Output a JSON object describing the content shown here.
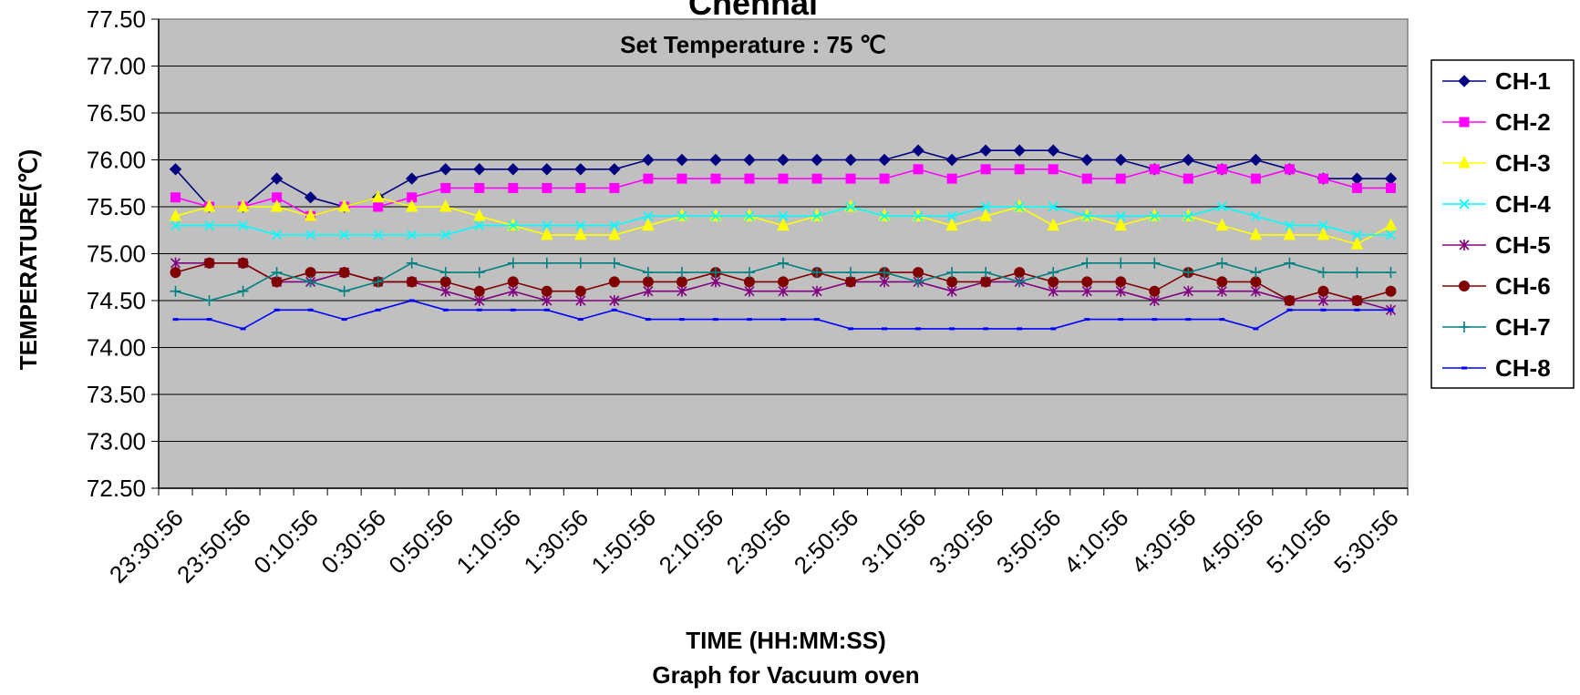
{
  "chart_data": {
    "type": "line",
    "title": "Chennai",
    "annotation": "Set Temperature : 75 ℃",
    "xlabel": "TIME (HH:MM:SS)",
    "caption": "Graph for Vacuum oven",
    "ylabel": "TEMPERATURE(℃)",
    "ylim": [
      72.5,
      77.5
    ],
    "y_ticks": [
      "72.50",
      "73.00",
      "73.50",
      "74.00",
      "74.50",
      "75.00",
      "75.50",
      "76.00",
      "76.50",
      "77.00",
      "77.50"
    ],
    "x_tick_labels": [
      "23:30:56",
      "23:50:56",
      "0:10:56",
      "0:30:56",
      "0:50:56",
      "1:10:56",
      "1:30:56",
      "1:50:56",
      "2:10:56",
      "2:30:56",
      "2:50:56",
      "3:10:56",
      "3:30:56",
      "3:50:56",
      "4:10:56",
      "4:30:56",
      "4:50:56",
      "5:10:56",
      "5:30:56"
    ],
    "grid": true,
    "plot_background": "#c0c0c0",
    "legend_position": "right",
    "series": [
      {
        "name": "CH-1",
        "color": "#000080",
        "marker": "diamond",
        "values": [
          75.9,
          75.5,
          75.5,
          75.8,
          75.6,
          75.5,
          75.6,
          75.8,
          75.9,
          75.9,
          75.9,
          75.9,
          75.9,
          75.9,
          76.0,
          76.0,
          76.0,
          76.0,
          76.0,
          76.0,
          76.0,
          76.0,
          76.1,
          76.0,
          76.1,
          76.1,
          76.1,
          76.0,
          76.0,
          75.9,
          76.0,
          75.9,
          76.0,
          75.9,
          75.8,
          75.8,
          75.8
        ]
      },
      {
        "name": "CH-2",
        "color": "#ff00ff",
        "marker": "square",
        "values": [
          75.6,
          75.5,
          75.5,
          75.6,
          75.4,
          75.5,
          75.5,
          75.6,
          75.7,
          75.7,
          75.7,
          75.7,
          75.7,
          75.7,
          75.8,
          75.8,
          75.8,
          75.8,
          75.8,
          75.8,
          75.8,
          75.8,
          75.9,
          75.8,
          75.9,
          75.9,
          75.9,
          75.8,
          75.8,
          75.9,
          75.8,
          75.9,
          75.8,
          75.9,
          75.8,
          75.7,
          75.7
        ]
      },
      {
        "name": "CH-3",
        "color": "#ffff00",
        "marker": "triangle",
        "values": [
          75.4,
          75.5,
          75.5,
          75.5,
          75.4,
          75.5,
          75.6,
          75.5,
          75.5,
          75.4,
          75.3,
          75.2,
          75.2,
          75.2,
          75.3,
          75.4,
          75.4,
          75.4,
          75.3,
          75.4,
          75.5,
          75.4,
          75.4,
          75.3,
          75.4,
          75.5,
          75.3,
          75.4,
          75.3,
          75.4,
          75.4,
          75.3,
          75.2,
          75.2,
          75.2,
          75.1,
          75.3
        ]
      },
      {
        "name": "CH-4",
        "color": "#00ffff",
        "marker": "x",
        "values": [
          75.3,
          75.3,
          75.3,
          75.2,
          75.2,
          75.2,
          75.2,
          75.2,
          75.2,
          75.3,
          75.3,
          75.3,
          75.3,
          75.3,
          75.4,
          75.4,
          75.4,
          75.4,
          75.4,
          75.4,
          75.5,
          75.4,
          75.4,
          75.4,
          75.5,
          75.5,
          75.5,
          75.4,
          75.4,
          75.4,
          75.4,
          75.5,
          75.4,
          75.3,
          75.3,
          75.2,
          75.2
        ]
      },
      {
        "name": "CH-5",
        "color": "#800080",
        "marker": "star",
        "values": [
          74.9,
          74.9,
          74.9,
          74.7,
          74.7,
          74.8,
          74.7,
          74.7,
          74.6,
          74.5,
          74.6,
          74.5,
          74.5,
          74.5,
          74.6,
          74.6,
          74.7,
          74.6,
          74.6,
          74.6,
          74.7,
          74.7,
          74.7,
          74.6,
          74.7,
          74.7,
          74.6,
          74.6,
          74.6,
          74.5,
          74.6,
          74.6,
          74.6,
          74.5,
          74.5,
          74.5,
          74.4
        ]
      },
      {
        "name": "CH-6",
        "color": "#800000",
        "marker": "circle",
        "values": [
          74.8,
          74.9,
          74.9,
          74.7,
          74.8,
          74.8,
          74.7,
          74.7,
          74.7,
          74.6,
          74.7,
          74.6,
          74.6,
          74.7,
          74.7,
          74.7,
          74.8,
          74.7,
          74.7,
          74.8,
          74.7,
          74.8,
          74.8,
          74.7,
          74.7,
          74.8,
          74.7,
          74.7,
          74.7,
          74.6,
          74.8,
          74.7,
          74.7,
          74.5,
          74.6,
          74.5,
          74.6
        ]
      },
      {
        "name": "CH-7",
        "color": "#008080",
        "marker": "plus",
        "values": [
          74.6,
          74.5,
          74.6,
          74.8,
          74.7,
          74.6,
          74.7,
          74.9,
          74.8,
          74.8,
          74.9,
          74.9,
          74.9,
          74.9,
          74.8,
          74.8,
          74.8,
          74.8,
          74.9,
          74.8,
          74.8,
          74.8,
          74.7,
          74.8,
          74.8,
          74.7,
          74.8,
          74.9,
          74.9,
          74.9,
          74.8,
          74.9,
          74.8,
          74.9,
          74.8,
          74.8,
          74.8
        ]
      },
      {
        "name": "CH-8",
        "color": "#0000ff",
        "marker": "dash",
        "values": [
          74.3,
          74.3,
          74.2,
          74.4,
          74.4,
          74.3,
          74.4,
          74.5,
          74.4,
          74.4,
          74.4,
          74.4,
          74.3,
          74.4,
          74.3,
          74.3,
          74.3,
          74.3,
          74.3,
          74.3,
          74.2,
          74.2,
          74.2,
          74.2,
          74.2,
          74.2,
          74.2,
          74.3,
          74.3,
          74.3,
          74.3,
          74.3,
          74.2,
          74.4,
          74.4,
          74.4,
          74.4
        ]
      }
    ]
  }
}
